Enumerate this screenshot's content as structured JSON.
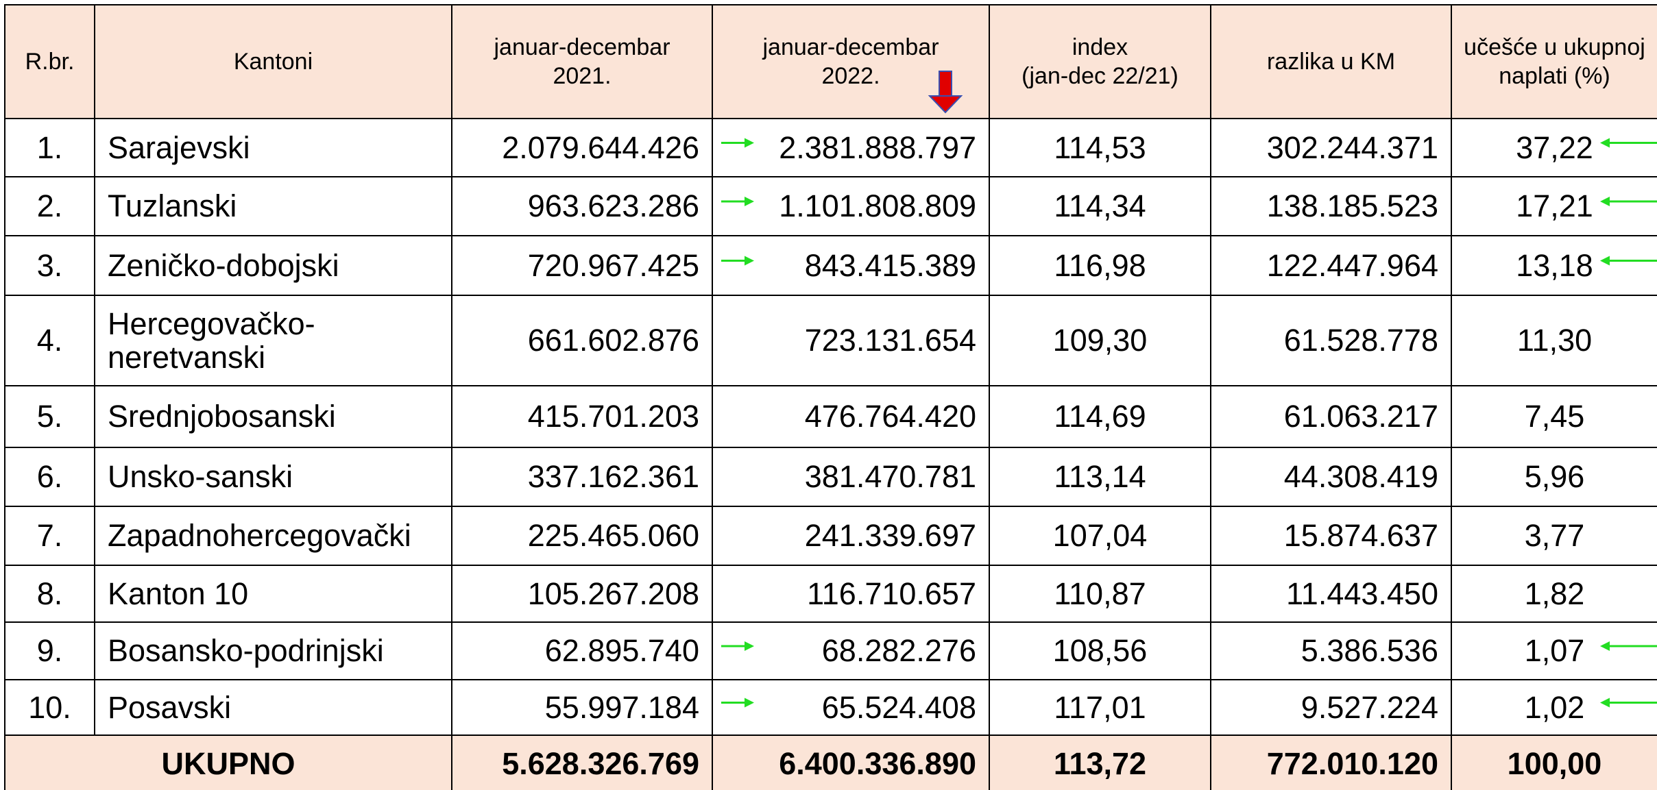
{
  "table": {
    "header": [
      "R.br.",
      "Kantoni",
      "januar-decembar\n2021.",
      "januar-decembar\n2022.",
      "index\n(jan-dec 22/21)",
      "razlika u KM",
      "učešće u ukupnoj\nnaplati (%)"
    ],
    "rows": [
      [
        "1.",
        "Sarajevski",
        "2.079.644.426",
        "2.381.888.797",
        "114,53",
        "302.244.371",
        "37,22"
      ],
      [
        "2.",
        "Tuzlanski",
        "963.623.286",
        "1.101.808.809",
        "114,34",
        "138.185.523",
        "17,21"
      ],
      [
        "3.",
        "Zeničko-dobojski",
        "720.967.425",
        "843.415.389",
        "116,98",
        "122.447.964",
        "13,18"
      ],
      [
        "4.",
        "Hercegovačko-neretvanski",
        "661.602.876",
        "723.131.654",
        "109,30",
        "61.528.778",
        "11,30"
      ],
      [
        "5.",
        "Srednjobosanski",
        "415.701.203",
        "476.764.420",
        "114,69",
        "61.063.217",
        "7,45"
      ],
      [
        "6.",
        "Unsko-sanski",
        "337.162.361",
        "381.470.781",
        "113,14",
        "44.308.419",
        "5,96"
      ],
      [
        "7.",
        "Zapadnohercegovački",
        "225.465.060",
        "241.339.697",
        "107,04",
        "15.874.637",
        "3,77"
      ],
      [
        "8.",
        "Kanton 10",
        "105.267.208",
        "116.710.657",
        "110,87",
        "11.443.450",
        "1,82"
      ],
      [
        "9.",
        "Bosansko-podrinjski",
        "62.895.740",
        "68.282.276",
        "108,56",
        "5.386.536",
        "1,07"
      ],
      [
        "10.",
        "Posavski",
        "55.997.184",
        "65.524.408",
        "117,01",
        "9.527.224",
        "1,02"
      ]
    ],
    "total": [
      "UKUPNO",
      "5.628.326.769",
      "6.400.336.890",
      "113,72",
      "772.010.120",
      "100,00"
    ]
  }
}
